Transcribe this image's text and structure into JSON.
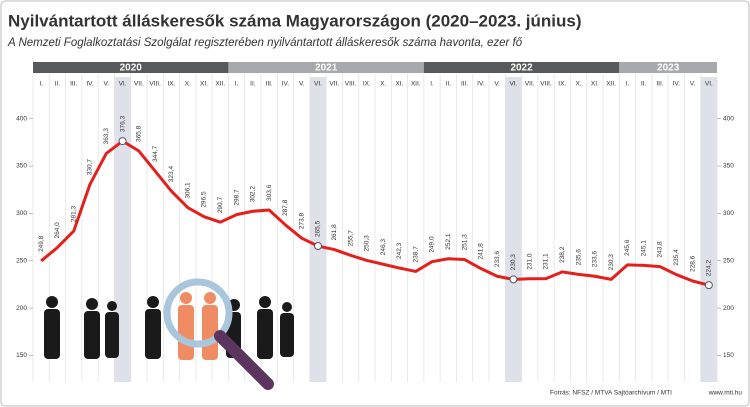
{
  "chart_data": {
    "type": "line",
    "title": "Nyilvántartott álláskeresők száma Magyarországon (2020–2023. június)",
    "subtitle": "A Nemzeti Foglalkoztatási Szolgálat regiszterében nyilvántartott álláskeresők száma havonta, ezer fő",
    "years": [
      "2020",
      "2021",
      "2022",
      "2023"
    ],
    "year_colors": [
      "#58595b",
      "#a7a9ac"
    ],
    "categories": [
      "I.",
      "II.",
      "III.",
      "IV.",
      "V.",
      "VI.",
      "VII.",
      "VIII.",
      "IX.",
      "X.",
      "XI.",
      "XII.",
      "I.",
      "II.",
      "III.",
      "IV.",
      "V.",
      "VI.",
      "VII.",
      "VIII.",
      "IX.",
      "X.",
      "XI.",
      "XII.",
      "I.",
      "II.",
      "III.",
      "IV.",
      "V.",
      "VI.",
      "VII.",
      "VIII.",
      "IX.",
      "X.",
      "XI.",
      "XII.",
      "I.",
      "II.",
      "III.",
      "IV.",
      "V.",
      "VI."
    ],
    "highlight_category": "VI.",
    "highlight_color": "#dfe1ea",
    "series": [
      {
        "color": "#e3201b",
        "values": [
          249.8,
          264.0,
          281.3,
          330.7,
          363.3,
          376.3,
          365.8,
          344.7,
          323.4,
          306.1,
          296.5,
          290.7,
          298.7,
          302.2,
          303.6,
          287.8,
          273.8,
          265.5,
          261.8,
          255.7,
          250.3,
          246.3,
          242.3,
          238.7,
          249.0,
          252.1,
          251.3,
          241.8,
          233.6,
          230.3,
          231.0,
          231.1,
          238.2,
          235.6,
          233.6,
          230.3,
          245.6,
          245.1,
          243.8,
          235.4,
          228.6,
          224.2
        ],
        "value_labels": [
          "249,8",
          "264,0",
          "281,3",
          "330,7",
          "363,3",
          "376,3",
          "365,8",
          "344,7",
          "323,4",
          "306,1",
          "296,5",
          "290,7",
          "298,7",
          "302,2",
          "303,6",
          "287,8",
          "273,8",
          "265,5",
          "261,8",
          "255,7",
          "250,3",
          "246,3",
          "242,3",
          "238,7",
          "249,0",
          "252,1",
          "251,3",
          "241,8",
          "233,6",
          "230,3",
          "231,0",
          "231,1",
          "238,2",
          "235,6",
          "233,6",
          "230,3",
          "245,6",
          "245,1",
          "243,8",
          "235,4",
          "228,6",
          "224,2"
        ]
      }
    ],
    "ylim": [
      122,
      445
    ],
    "yticks": [
      150,
      200,
      250,
      300,
      350,
      400
    ],
    "source": "Forrás: NFSZ / MTVA Sajtóarchívum / MTI",
    "website": "www.mti.hu"
  }
}
